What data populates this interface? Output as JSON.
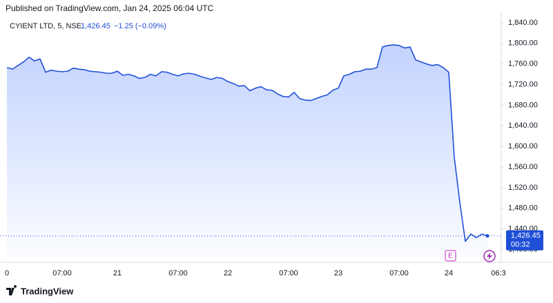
{
  "chart_data": {
    "type": "area",
    "published": "Published on TradingView.com, Jan 24, 2025 06:04 UTC",
    "symbol": "CYIENT LTD, 5, NSE",
    "legend_price": "1,426.45",
    "legend_change": "−1.25 (−0.09%)",
    "last_price_label": "1,426.45",
    "countdown": "00:32",
    "earnings_marker": "E",
    "brand": "TradingView",
    "grid": false,
    "categories": [
      "0",
      null,
      null,
      null,
      null,
      null,
      null,
      null,
      null,
      null,
      "07:00",
      null,
      null,
      null,
      null,
      null,
      null,
      null,
      null,
      null,
      "21",
      null,
      null,
      null,
      null,
      null,
      null,
      null,
      null,
      null,
      null,
      "07:00",
      null,
      null,
      null,
      null,
      null,
      null,
      null,
      null,
      "22",
      null,
      null,
      null,
      null,
      null,
      null,
      null,
      null,
      null,
      null,
      "07:00",
      null,
      null,
      null,
      null,
      null,
      null,
      null,
      null,
      "23",
      null,
      null,
      null,
      null,
      null,
      null,
      null,
      null,
      null,
      null,
      "07:00",
      null,
      null,
      null,
      null,
      null,
      null,
      null,
      null,
      "24",
      null,
      null,
      null,
      null,
      null,
      null,
      null,
      null,
      "06:3"
    ],
    "series": [
      {
        "name": "CYIENT LTD",
        "color": "#1f4fd6",
        "values": [
          1753,
          1750,
          1757,
          1764,
          1773,
          1766,
          1770,
          1744,
          1748,
          1746,
          1745,
          1746,
          1752,
          1750,
          1749,
          1746,
          1745,
          1744,
          1742,
          1742,
          1746,
          1738,
          1740,
          1737,
          1732,
          1734,
          1740,
          1737,
          1745,
          1744,
          1740,
          1737,
          1741,
          1742,
          1740,
          1736,
          1733,
          1730,
          1734,
          1732,
          1726,
          1722,
          1717,
          1718,
          1708,
          1713,
          1716,
          1710,
          1709,
          1702,
          1697,
          1696,
          1705,
          1693,
          1690,
          1689,
          1693,
          1697,
          1700,
          1709,
          1713,
          1737,
          1740,
          1745,
          1746,
          1750,
          1750,
          1753,
          1793,
          1796,
          1797,
          1796,
          1791,
          1793,
          1768,
          1764,
          1760,
          1757,
          1759,
          1753,
          1744,
          1579,
          1492,
          1416,
          1430,
          1423,
          1430,
          1426.45,
          null,
          null
        ]
      }
    ],
    "ylim": [
      1386,
      1860
    ],
    "yticks": [
      {
        "value": 1400,
        "label": "1,400.00"
      },
      {
        "value": 1440,
        "label": "1,440.00"
      },
      {
        "value": 1480,
        "label": "1,480.00"
      },
      {
        "value": 1520,
        "label": "1,520.00"
      },
      {
        "value": 1560,
        "label": "1,560.00"
      },
      {
        "value": 1600,
        "label": "1,600.00"
      },
      {
        "value": 1640,
        "label": "1,640.00"
      },
      {
        "value": 1680,
        "label": "1,680.00"
      },
      {
        "value": 1720,
        "label": "1,720.00"
      },
      {
        "value": 1760,
        "label": "1,760.00"
      },
      {
        "value": 1800,
        "label": "1,800.00"
      },
      {
        "value": 1840,
        "label": "1,840.00"
      }
    ]
  }
}
